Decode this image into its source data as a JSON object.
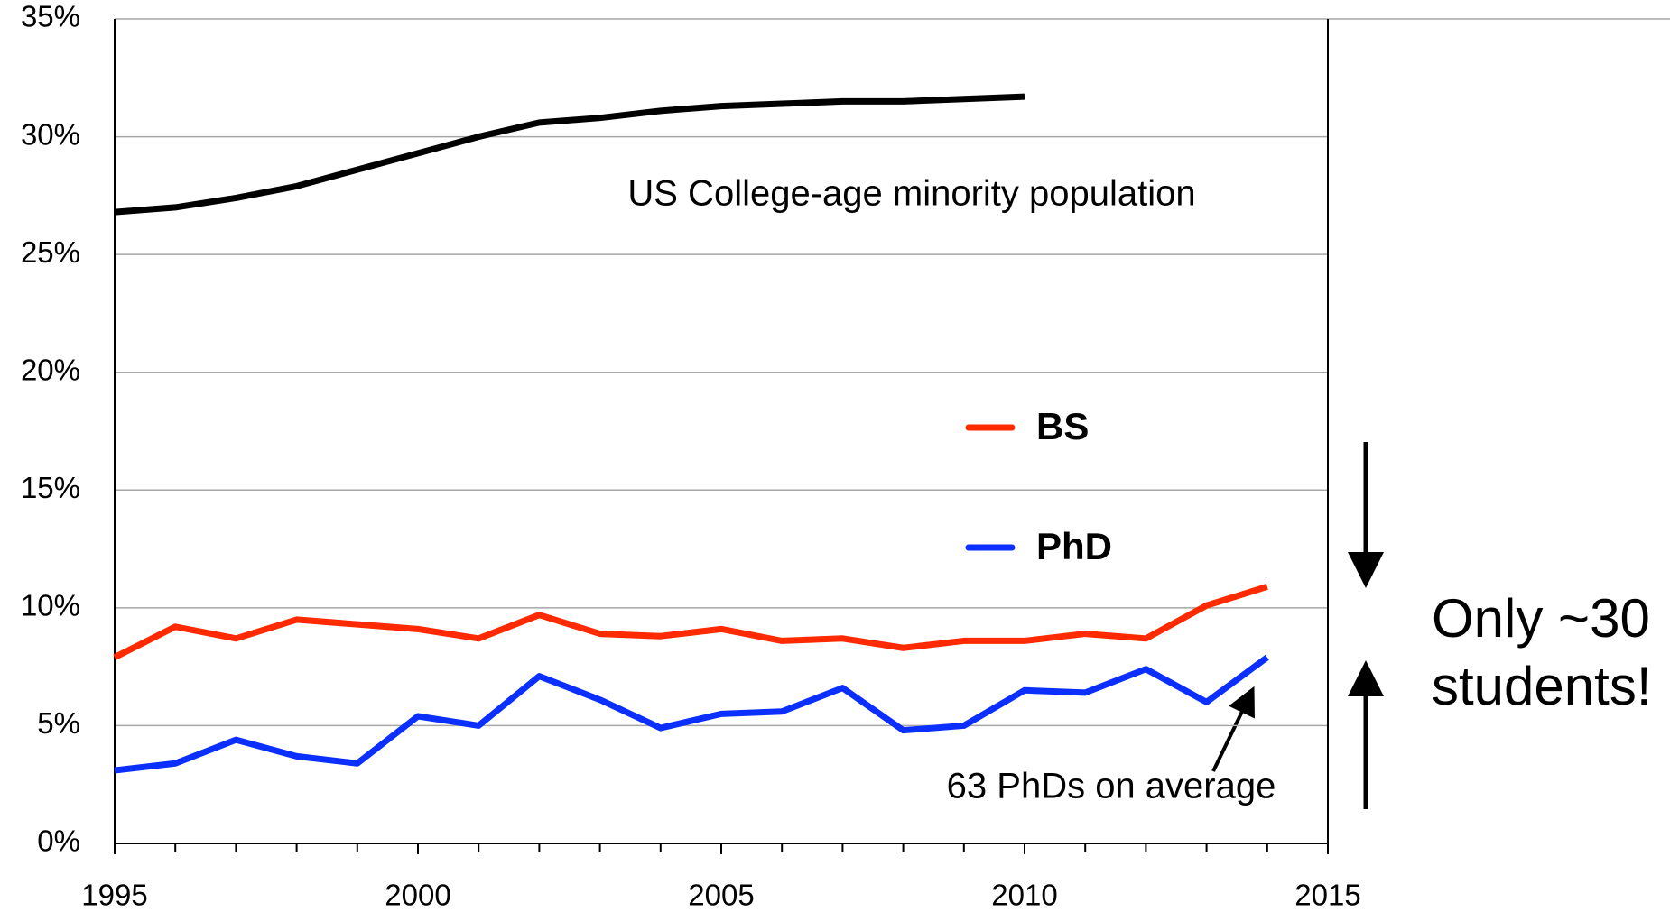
{
  "chart_data": {
    "type": "line",
    "x": [
      1995,
      1996,
      1997,
      1998,
      1999,
      2000,
      2001,
      2002,
      2003,
      2004,
      2005,
      2006,
      2007,
      2008,
      2009,
      2010,
      2011,
      2012,
      2013,
      2014
    ],
    "series": [
      {
        "name": "US College-age minority population",
        "color": "#000000",
        "values": [
          26.8,
          27.0,
          27.4,
          27.9,
          28.6,
          29.3,
          30.0,
          30.6,
          30.8,
          31.1,
          31.3,
          31.4,
          31.5,
          31.5,
          31.6,
          31.7,
          null,
          null,
          null,
          null
        ]
      },
      {
        "name": "BS",
        "color": "#ff2a00",
        "values": [
          7.9,
          9.2,
          8.7,
          9.5,
          9.3,
          9.1,
          8.7,
          9.7,
          8.9,
          8.8,
          9.1,
          8.6,
          8.7,
          8.3,
          8.6,
          8.6,
          8.9,
          8.7,
          10.1,
          10.9
        ]
      },
      {
        "name": "PhD",
        "color": "#0a2fff",
        "values": [
          3.1,
          3.4,
          4.4,
          3.7,
          3.4,
          5.4,
          5.0,
          7.1,
          6.1,
          4.9,
          5.5,
          5.6,
          6.6,
          4.8,
          5.0,
          6.5,
          6.4,
          7.4,
          6.0,
          7.9
        ]
      }
    ],
    "xlim": [
      1995,
      2015
    ],
    "xticks": [
      1995,
      2000,
      2005,
      2010,
      2015
    ],
    "ylim": [
      0,
      35
    ],
    "yticks": [
      {
        "value": 0,
        "label": "0%"
      },
      {
        "value": 5,
        "label": "5%"
      },
      {
        "value": 10,
        "label": "10%"
      },
      {
        "value": 15,
        "label": "15%"
      },
      {
        "value": 20,
        "label": "20%"
      },
      {
        "value": 25,
        "label": "25%"
      },
      {
        "value": 30,
        "label": "30%"
      },
      {
        "value": 35,
        "label": "35%"
      }
    ],
    "grid": true,
    "annotations": [
      "63 PhDs on average",
      "Only ~30",
      "students!"
    ]
  }
}
